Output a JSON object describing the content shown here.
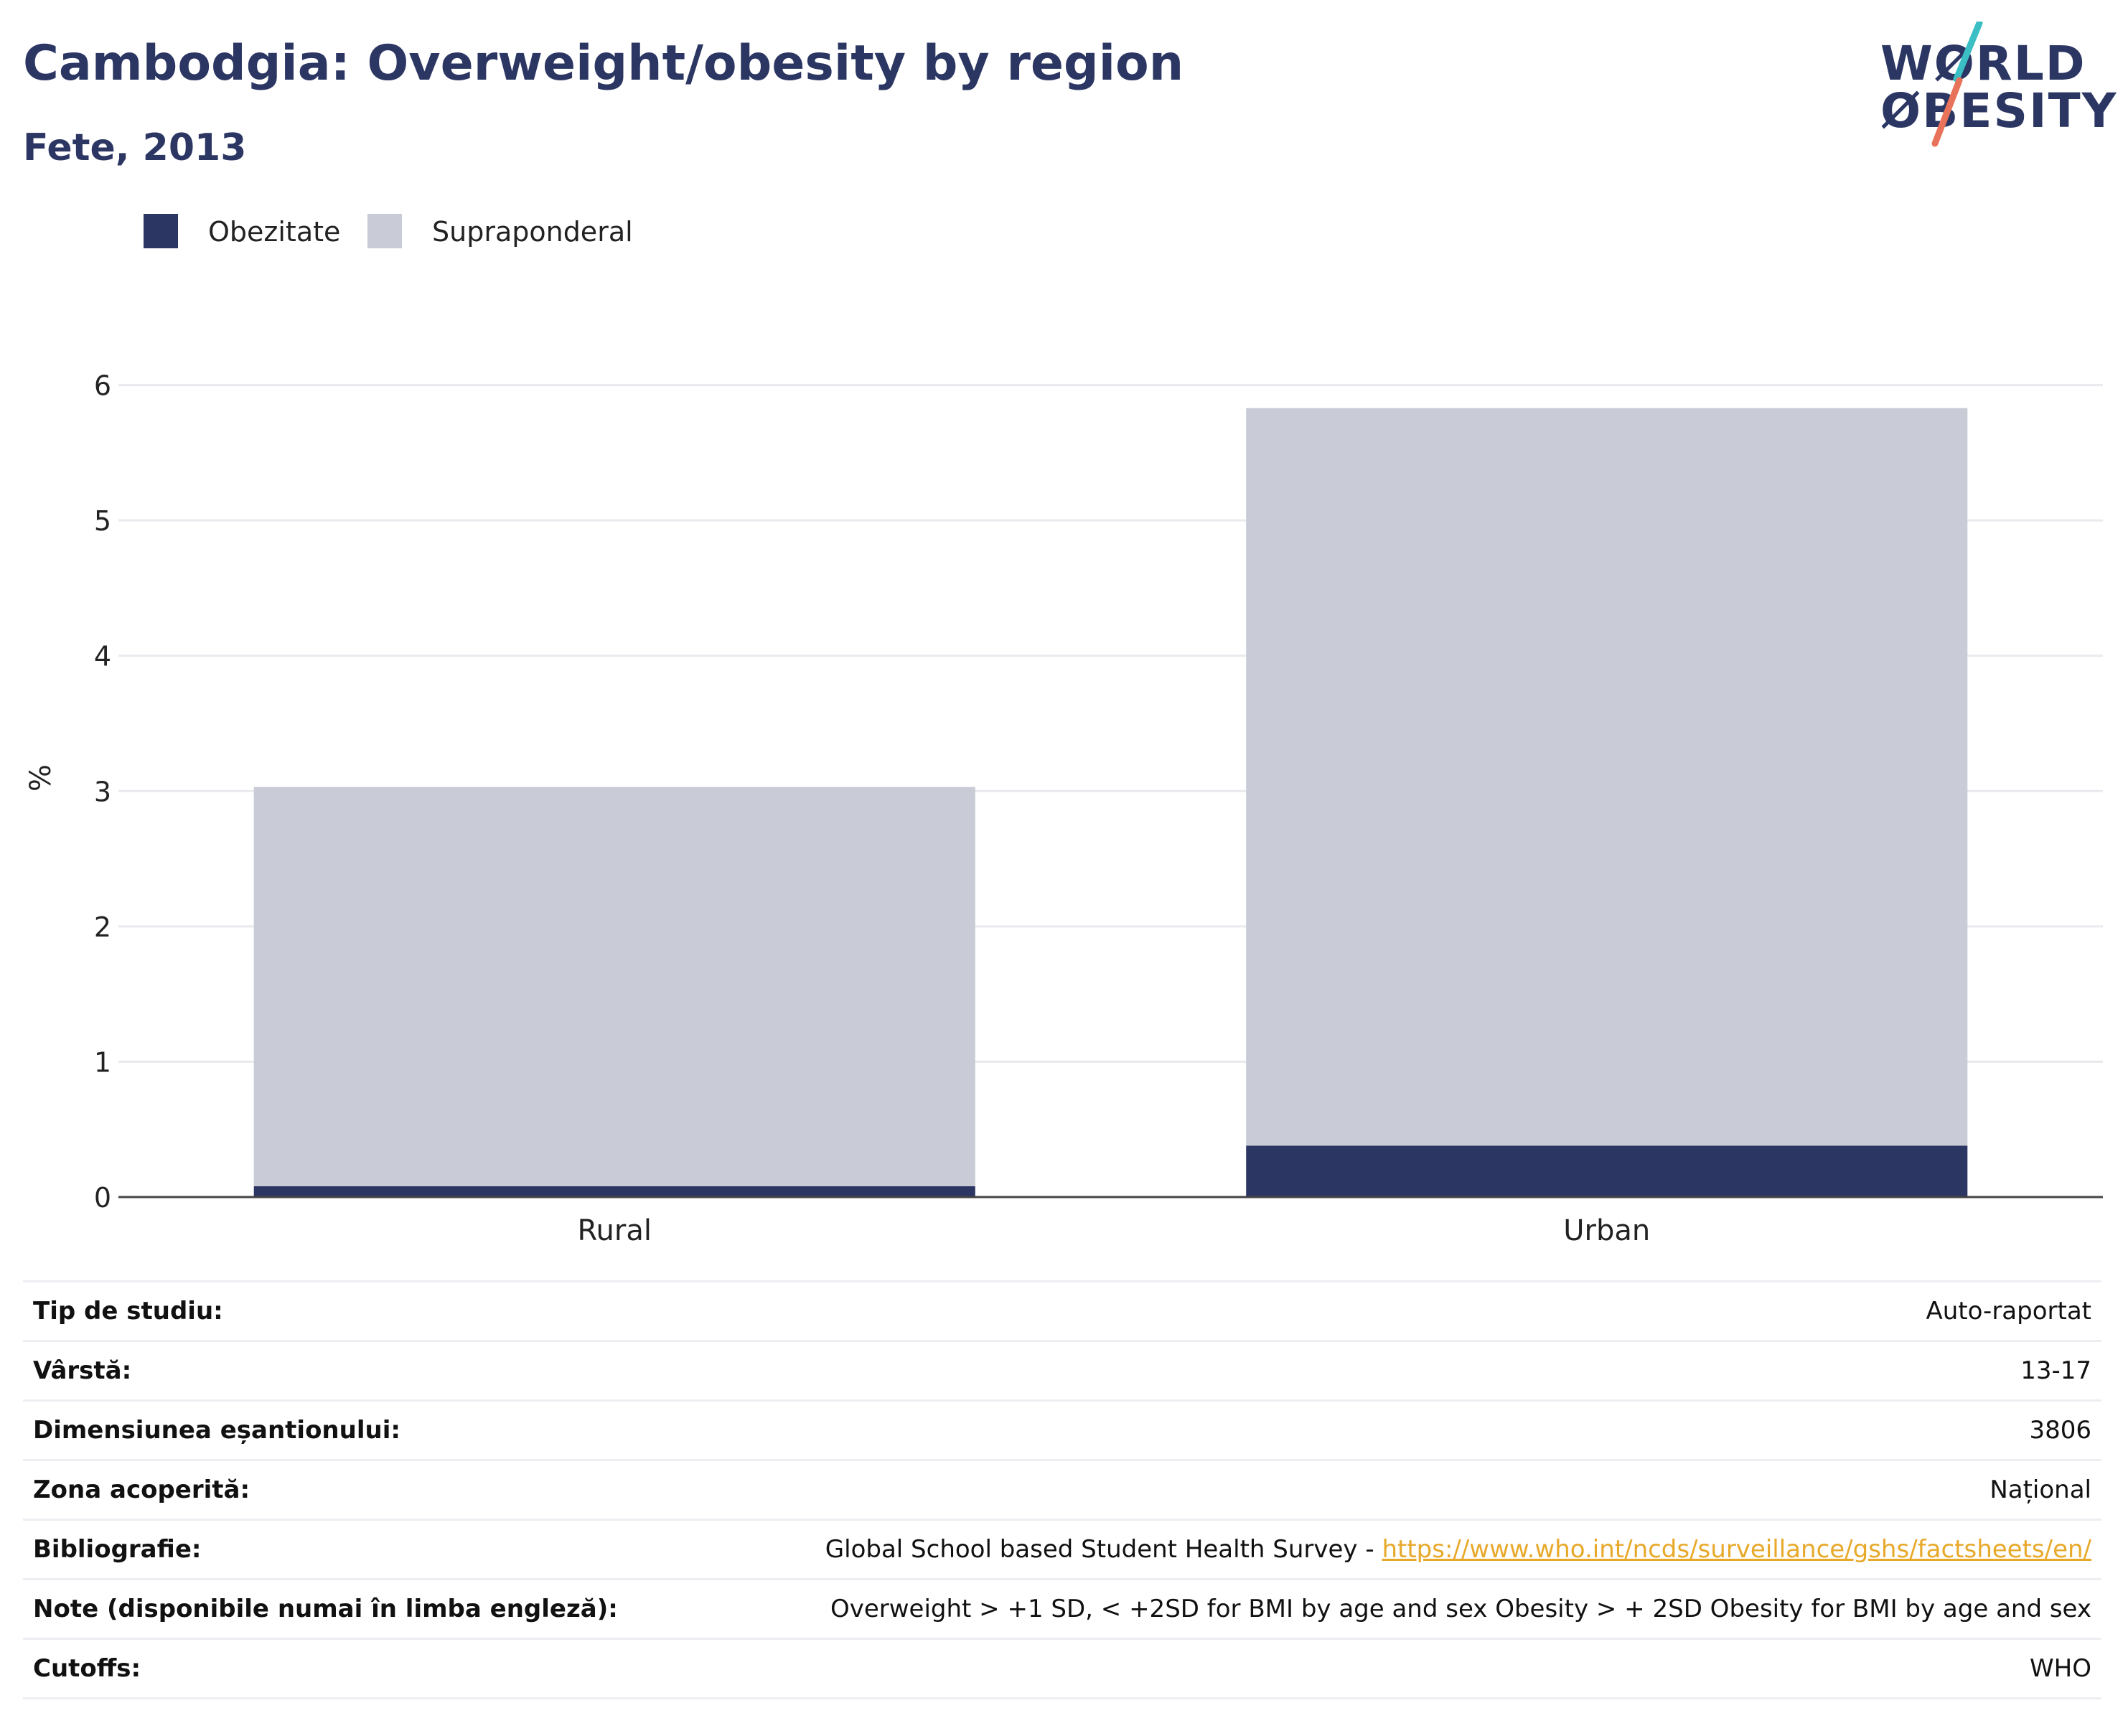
{
  "header": {
    "title": "Cambodgia: Overweight/obesity by region",
    "subtitle": "Fete, 2013"
  },
  "logo": {
    "line1": "WØRLD",
    "line2": "ØBESITY",
    "colors": {
      "text": "#2b3663",
      "slash_top": "#3bbfc4",
      "slash_bottom": "#e8735a"
    }
  },
  "legend": [
    {
      "label": "Obezitate",
      "color": "#2b3663"
    },
    {
      "label": "Supraponderal",
      "color": "#c9cbd6"
    }
  ],
  "chart_data": {
    "type": "bar",
    "stacked": true,
    "categories": [
      "Rural",
      "Urban"
    ],
    "series": [
      {
        "name": "Obezitate",
        "values": [
          0.08,
          0.38
        ],
        "color": "#2b3663"
      },
      {
        "name": "Supraponderal",
        "values": [
          2.95,
          5.45
        ],
        "color": "#c9cbd6"
      }
    ],
    "ylabel": "%",
    "xlabel": "",
    "ylim": [
      0,
      6.3
    ],
    "yticks": [
      0,
      1,
      2,
      3,
      4,
      5,
      6
    ],
    "grid": true,
    "legend_position": "top-left"
  },
  "info": [
    {
      "key": "Tip de studiu:",
      "value": "Auto-raportat"
    },
    {
      "key": "Vârstă:",
      "value": "13-17"
    },
    {
      "key": "Dimensiunea eșantionului:",
      "value": "3806"
    },
    {
      "key": "Zona acoperită:",
      "value": "Național"
    },
    {
      "key": "Bibliografie:",
      "value": "Global School based Student Health Survey - ",
      "link": "https://www.who.int/ncds/surveillance/gshs/factsheets/en/"
    },
    {
      "key": "Note (disponibile numai în limba engleză):",
      "value": "Overweight > +1 SD, < +2SD for BMI by age and sex Obesity > + 2SD Obesity for BMI by age and sex"
    },
    {
      "key": "Cutoffs:",
      "value": "WHO"
    }
  ]
}
